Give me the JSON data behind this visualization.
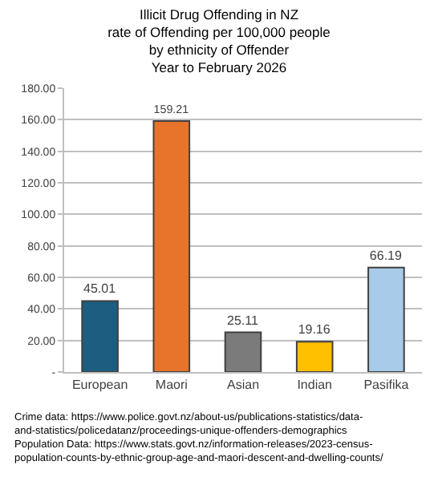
{
  "chart_data": {
    "type": "bar",
    "title": "Illicit Drug Offending in NZ\nrate of Offending per 100,000 people\nby ethnicity of Offender\nYear to February 2026",
    "categories": [
      "European",
      "Maori",
      "Asian",
      "Indian",
      "Pasifika"
    ],
    "values": [
      45.01,
      159.21,
      25.11,
      19.16,
      66.19
    ],
    "colors": [
      "#1c5d80",
      "#e8742c",
      "#7b7b7b",
      "#ffc000",
      "#a8cbe9"
    ],
    "ylim": [
      0,
      180
    ],
    "yticks": [
      {
        "value": 0,
        "label": "-"
      },
      {
        "value": 20,
        "label": "20.00"
      },
      {
        "value": 40,
        "label": "40.00"
      },
      {
        "value": 60,
        "label": "60.00"
      },
      {
        "value": 80,
        "label": "80.00"
      },
      {
        "value": 100,
        "label": "100.00"
      },
      {
        "value": 120,
        "label": "120.00"
      },
      {
        "value": 140,
        "label": "140.00"
      },
      {
        "value": 160,
        "label": "160.00"
      },
      {
        "value": 180,
        "label": "180.00"
      }
    ],
    "grid": "y",
    "data_labels": true,
    "annotations": [
      "Crime data: https://www.police.govt.nz/about-us/publications-statistics/data-and-statistics/policedatanz/proceedings-unique-offenders-demographics",
      "Population Data: https://www.stats.govt.nz/information-releases/2023-census-population-counts-by-ethnic-group-age-and-maori-descent-and-dwelling-counts/"
    ]
  }
}
